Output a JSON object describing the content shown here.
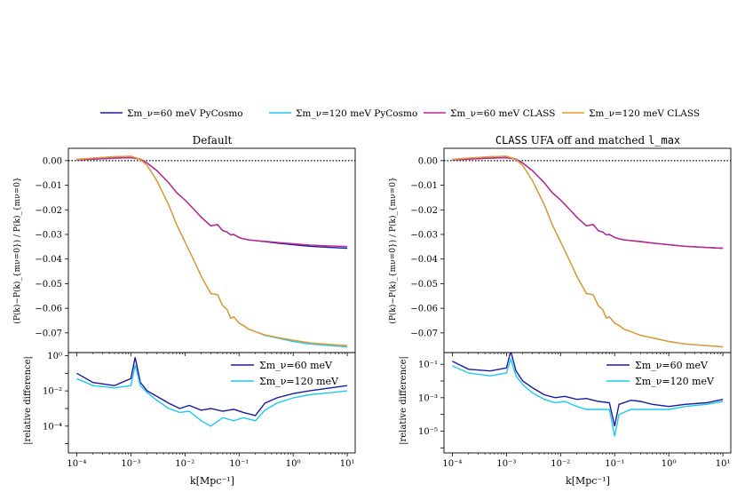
{
  "legend": [
    {
      "label": "Σm_ν=60 meV PyCosmo",
      "color": "#1a1aa0"
    },
    {
      "label": "Σm_ν=120 meV PyCosmo",
      "color": "#1ec8ee"
    },
    {
      "label": "Σm_ν=60 meV CLASS",
      "color": "#c2268f"
    },
    {
      "label": "Σm_ν=120 meV CLASS",
      "color": "#e8962a"
    }
  ],
  "chart_data": [
    {
      "type": "line",
      "title": "Default",
      "ylabel": "(P(k)−P(k)_{mν=0}) / P(k)_{mν=0}",
      "xscale": "log",
      "ylim": [
        -0.078,
        0.005
      ],
      "yticks": [
        "0.00",
        "−0.01",
        "−0.02",
        "−0.03",
        "−0.04",
        "−0.05",
        "−0.06",
        "−0.07"
      ],
      "reference_line": 0.0,
      "x": [
        0.0001,
        0.0002,
        0.0005,
        0.001,
        0.0015,
        0.002,
        0.003,
        0.005,
        0.007,
        0.01,
        0.015,
        0.02,
        0.03,
        0.04,
        0.05,
        0.06,
        0.07,
        0.08,
        0.1,
        0.12,
        0.15,
        0.2,
        0.3,
        0.5,
        1,
        2,
        5,
        10
      ],
      "series": [
        {
          "name": "Σm_ν=60 meV PyCosmo",
          "color": "#1a1aa0",
          "values": [
            0.0003,
            0.0006,
            0.001,
            0.0012,
            0.0006,
            -0.001,
            -0.004,
            -0.009,
            -0.013,
            -0.016,
            -0.02,
            -0.023,
            -0.0265,
            -0.026,
            -0.0285,
            -0.029,
            -0.0302,
            -0.03,
            -0.0312,
            -0.0318,
            -0.0322,
            -0.0325,
            -0.0329,
            -0.0335,
            -0.0342,
            -0.0348,
            -0.0353,
            -0.0356
          ]
        },
        {
          "name": "Σm_ν=120 meV PyCosmo",
          "color": "#1ec8ee",
          "values": [
            0.0005,
            0.001,
            0.0016,
            0.0018,
            0.0005,
            -0.002,
            -0.008,
            -0.018,
            -0.026,
            -0.033,
            -0.041,
            -0.047,
            -0.054,
            -0.0545,
            -0.059,
            -0.0605,
            -0.064,
            -0.0635,
            -0.066,
            -0.067,
            -0.0685,
            -0.0695,
            -0.071,
            -0.072,
            -0.0735,
            -0.0745,
            -0.0752,
            -0.0757
          ]
        },
        {
          "name": "Σm_ν=60 meV CLASS",
          "color": "#c2268f",
          "values": [
            0.0003,
            0.0006,
            0.001,
            0.0012,
            0.0006,
            -0.001,
            -0.004,
            -0.009,
            -0.013,
            -0.016,
            -0.02,
            -0.023,
            -0.0265,
            -0.026,
            -0.0285,
            -0.029,
            -0.0302,
            -0.03,
            -0.0312,
            -0.0318,
            -0.0322,
            -0.0325,
            -0.0328,
            -0.0332,
            -0.0338,
            -0.0343,
            -0.0347,
            -0.0349
          ]
        },
        {
          "name": "Σm_ν=120 meV CLASS",
          "color": "#e8962a",
          "values": [
            0.0005,
            0.001,
            0.0016,
            0.0018,
            0.0005,
            -0.002,
            -0.008,
            -0.018,
            -0.026,
            -0.033,
            -0.041,
            -0.047,
            -0.054,
            -0.0545,
            -0.059,
            -0.0605,
            -0.064,
            -0.0635,
            -0.066,
            -0.067,
            -0.0685,
            -0.0695,
            -0.0708,
            -0.0718,
            -0.073,
            -0.074,
            -0.0747,
            -0.0751
          ]
        }
      ]
    },
    {
      "type": "line",
      "xlabel": "k[Mpc⁻¹]",
      "ylabel": "|relative difference|",
      "xscale": "log",
      "yscale": "log",
      "ylim": [
        3e-06,
        1.5
      ],
      "xticks": [
        "10⁻⁴",
        "10⁻³",
        "10⁻²",
        "10⁻¹",
        "10⁰",
        "10¹"
      ],
      "yticks": [
        "10⁰",
        "10⁻²",
        "10⁻⁴"
      ],
      "legend_position": "top-right",
      "x": [
        0.0001,
        0.0002,
        0.0005,
        0.001,
        0.0012,
        0.0015,
        0.002,
        0.003,
        0.005,
        0.008,
        0.012,
        0.02,
        0.03,
        0.05,
        0.08,
        0.12,
        0.2,
        0.3,
        0.5,
        1,
        2,
        5,
        10
      ],
      "series": [
        {
          "name": "Σm_ν=60 meV",
          "color": "#1a1aa0",
          "values": [
            0.1,
            0.03,
            0.02,
            0.05,
            0.8,
            0.03,
            0.01,
            0.005,
            0.002,
            0.001,
            0.0015,
            0.0008,
            0.001,
            0.0007,
            0.0009,
            0.0006,
            0.0004,
            0.002,
            0.004,
            0.007,
            0.01,
            0.015,
            0.02
          ]
        },
        {
          "name": "Σm_ν=120 meV",
          "color": "#1ec8ee",
          "values": [
            0.05,
            0.02,
            0.015,
            0.02,
            0.3,
            0.02,
            0.008,
            0.003,
            0.001,
            0.0006,
            0.0007,
            0.0002,
            0.0001,
            0.0003,
            0.0002,
            0.0003,
            0.0002,
            0.0008,
            0.002,
            0.004,
            0.006,
            0.008,
            0.01
          ]
        }
      ]
    },
    {
      "type": "line",
      "title_prefix": "CLASS",
      "title_middle": " UFA off and matched ",
      "title_suffix": "l_max",
      "ylabel": "(P(k)−P(k)_{mν=0}) / P(k)_{mν=0}",
      "xscale": "log",
      "ylim": [
        -0.078,
        0.005
      ],
      "yticks": [
        "0.00",
        "−0.01",
        "−0.02",
        "−0.03",
        "−0.04",
        "−0.05",
        "−0.06",
        "−0.07"
      ],
      "reference_line": 0.0,
      "x": [
        0.0001,
        0.0002,
        0.0005,
        0.001,
        0.0015,
        0.002,
        0.003,
        0.005,
        0.007,
        0.01,
        0.015,
        0.02,
        0.03,
        0.04,
        0.05,
        0.06,
        0.07,
        0.08,
        0.1,
        0.12,
        0.15,
        0.2,
        0.3,
        0.5,
        1,
        2,
        5,
        10
      ],
      "series": [
        {
          "name": "Σm_ν=60 meV PyCosmo",
          "color": "#1a1aa0",
          "values": [
            0.0003,
            0.0006,
            0.001,
            0.0012,
            0.0006,
            -0.001,
            -0.004,
            -0.009,
            -0.013,
            -0.016,
            -0.02,
            -0.023,
            -0.0265,
            -0.026,
            -0.0285,
            -0.029,
            -0.0302,
            -0.03,
            -0.0312,
            -0.0318,
            -0.0322,
            -0.0325,
            -0.0329,
            -0.0335,
            -0.0342,
            -0.0348,
            -0.0353,
            -0.0356
          ]
        },
        {
          "name": "Σm_ν=120 meV PyCosmo",
          "color": "#1ec8ee",
          "values": [
            0.0005,
            0.001,
            0.0016,
            0.0018,
            0.0005,
            -0.002,
            -0.008,
            -0.018,
            -0.026,
            -0.033,
            -0.041,
            -0.047,
            -0.054,
            -0.0545,
            -0.059,
            -0.0605,
            -0.064,
            -0.0635,
            -0.066,
            -0.067,
            -0.0685,
            -0.0695,
            -0.071,
            -0.072,
            -0.0735,
            -0.0745,
            -0.0752,
            -0.0757
          ]
        },
        {
          "name": "Σm_ν=60 meV CLASS",
          "color": "#c2268f",
          "values": [
            0.0003,
            0.0006,
            0.001,
            0.0012,
            0.0006,
            -0.001,
            -0.004,
            -0.009,
            -0.013,
            -0.016,
            -0.02,
            -0.023,
            -0.0265,
            -0.026,
            -0.0285,
            -0.029,
            -0.0302,
            -0.03,
            -0.0312,
            -0.0318,
            -0.0322,
            -0.0325,
            -0.0329,
            -0.0335,
            -0.0342,
            -0.0348,
            -0.0353,
            -0.0356
          ]
        },
        {
          "name": "Σm_ν=120 meV CLASS",
          "color": "#e8962a",
          "values": [
            0.0005,
            0.001,
            0.0016,
            0.0018,
            0.0005,
            -0.002,
            -0.008,
            -0.018,
            -0.026,
            -0.033,
            -0.041,
            -0.047,
            -0.054,
            -0.0545,
            -0.059,
            -0.0605,
            -0.064,
            -0.0635,
            -0.066,
            -0.067,
            -0.0685,
            -0.0695,
            -0.071,
            -0.072,
            -0.0735,
            -0.0745,
            -0.0752,
            -0.0757
          ]
        }
      ]
    },
    {
      "type": "line",
      "xlabel": "k[Mpc⁻¹]",
      "ylabel": "|relative difference|",
      "xscale": "log",
      "yscale": "log",
      "ylim": [
        5e-07,
        0.5
      ],
      "xticks": [
        "10⁻⁴",
        "10⁻³",
        "10⁻²",
        "10⁻¹",
        "10⁰",
        "10¹"
      ],
      "yticks": [
        "10⁻¹",
        "10⁻³",
        "10⁻⁵"
      ],
      "legend_position": "top-right",
      "x": [
        0.0001,
        0.0002,
        0.0005,
        0.001,
        0.0012,
        0.0015,
        0.002,
        0.003,
        0.005,
        0.008,
        0.012,
        0.02,
        0.03,
        0.05,
        0.08,
        0.1,
        0.12,
        0.2,
        0.3,
        0.5,
        1,
        2,
        5,
        10
      ],
      "series": [
        {
          "name": "Σm_ν=60 meV",
          "color": "#1a1aa0",
          "values": [
            0.15,
            0.05,
            0.04,
            0.06,
            0.6,
            0.04,
            0.01,
            0.004,
            0.0015,
            0.001,
            0.0012,
            0.0008,
            0.0009,
            0.0006,
            0.0005,
            2e-05,
            0.0004,
            0.0007,
            0.0006,
            0.0004,
            0.0003,
            0.0004,
            0.0005,
            0.0008
          ]
        },
        {
          "name": "Σm_ν=120 meV",
          "color": "#1ec8ee",
          "values": [
            0.08,
            0.03,
            0.02,
            0.03,
            0.2,
            0.02,
            0.006,
            0.002,
            0.0008,
            0.0005,
            0.0006,
            0.0003,
            0.0002,
            0.0002,
            0.0002,
            5e-06,
            0.0001,
            0.0002,
            0.0002,
            0.0002,
            0.0002,
            0.0003,
            0.0004,
            0.0006
          ]
        }
      ]
    }
  ]
}
